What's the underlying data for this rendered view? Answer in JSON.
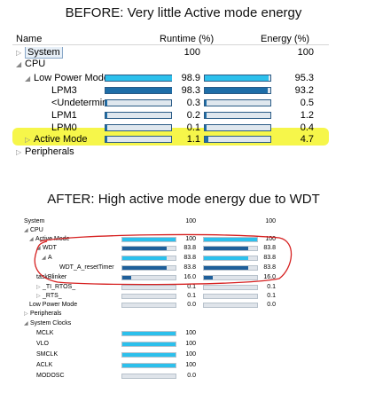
{
  "title_before": "BEFORE: Very little Active mode energy",
  "title_after": "AFTER: High active mode energy due to WDT",
  "before": {
    "headers": {
      "name": "Name",
      "runtime": "Runtime (%)",
      "energy": "Energy (%)"
    },
    "rows": [
      {
        "name": "System",
        "runtime": "100",
        "energy": "100",
        "runtime_fill": 0,
        "energy_fill": 0
      },
      {
        "name": "CPU",
        "runtime": "",
        "energy": ""
      },
      {
        "name": "Low Power Mode",
        "runtime": "98.9",
        "energy": "95.3",
        "runtime_fill": 0.989,
        "energy_fill": 0.953
      },
      {
        "name": "LPM3",
        "runtime": "98.3",
        "energy": "93.2",
        "runtime_fill": 0.983,
        "energy_fill": 0.932
      },
      {
        "name": "<Undetermine",
        "runtime": "0.3",
        "energy": "0.5",
        "runtime_fill": 0.003,
        "energy_fill": 0.005
      },
      {
        "name": "LPM1",
        "runtime": "0.2",
        "energy": "1.2",
        "runtime_fill": 0.002,
        "energy_fill": 0.012
      },
      {
        "name": "LPM0",
        "runtime": "0.1",
        "energy": "0.4",
        "runtime_fill": 0.001,
        "energy_fill": 0.004
      },
      {
        "name": "Active Mode",
        "runtime": "1.1",
        "energy": "4.7",
        "runtime_fill": 0.011,
        "energy_fill": 0.047
      },
      {
        "name": "Peripherals",
        "runtime": "",
        "energy": ""
      }
    ]
  },
  "after": {
    "rows": [
      {
        "name": "System",
        "runtime": "100",
        "energy": "100"
      },
      {
        "name": "CPU",
        "runtime": "",
        "energy": ""
      },
      {
        "name": "Active Mode",
        "runtime": "100",
        "energy": "100",
        "runtime_fill": 1.0,
        "energy_fill": 1.0
      },
      {
        "name": "WDT",
        "runtime": "83.8",
        "energy": "83.8",
        "runtime_fill": 0.838,
        "energy_fill": 0.838
      },
      {
        "name": "A",
        "runtime": "83.8",
        "energy": "83.8",
        "runtime_fill": 0.838,
        "energy_fill": 0.838
      },
      {
        "name": "WDT_A_resetTimer",
        "runtime": "83.8",
        "energy": "83.8",
        "runtime_fill": 0.838,
        "energy_fill": 0.838
      },
      {
        "name": "taskBlinker",
        "runtime": "16.0",
        "energy": "16.0",
        "runtime_fill": 0.16,
        "energy_fill": 0.16
      },
      {
        "name": "_TI_RTOS_",
        "runtime": "0.1",
        "energy": "0.1",
        "runtime_fill": 0.001,
        "energy_fill": 0.001
      },
      {
        "name": "_RTS_",
        "runtime": "0.1",
        "energy": "0.1",
        "runtime_fill": 0.001,
        "energy_fill": 0.001
      },
      {
        "name": "Low Power Mode",
        "runtime": "0.0",
        "energy": "0.0",
        "runtime_fill": 0,
        "energy_fill": 0
      },
      {
        "name": "Peripherals",
        "runtime": "",
        "energy": ""
      },
      {
        "name": "System Clocks",
        "runtime": "",
        "energy": ""
      },
      {
        "name": "MCLK",
        "runtime": "100",
        "energy": "",
        "runtime_fill": 1.0
      },
      {
        "name": "VLO",
        "runtime": "100",
        "energy": "",
        "runtime_fill": 1.0
      },
      {
        "name": "SMCLK",
        "runtime": "100",
        "energy": "",
        "runtime_fill": 1.0
      },
      {
        "name": "ACLK",
        "runtime": "100",
        "energy": "",
        "runtime_fill": 1.0
      },
      {
        "name": "MODOSC",
        "runtime": "0.0",
        "energy": "",
        "runtime_fill": 0
      }
    ]
  },
  "colors": {
    "highlight": "#f5f52a",
    "bar_cyan": "#2cc0ec",
    "bar_dark": "#1e6ea8",
    "annotation": "#d62020"
  }
}
